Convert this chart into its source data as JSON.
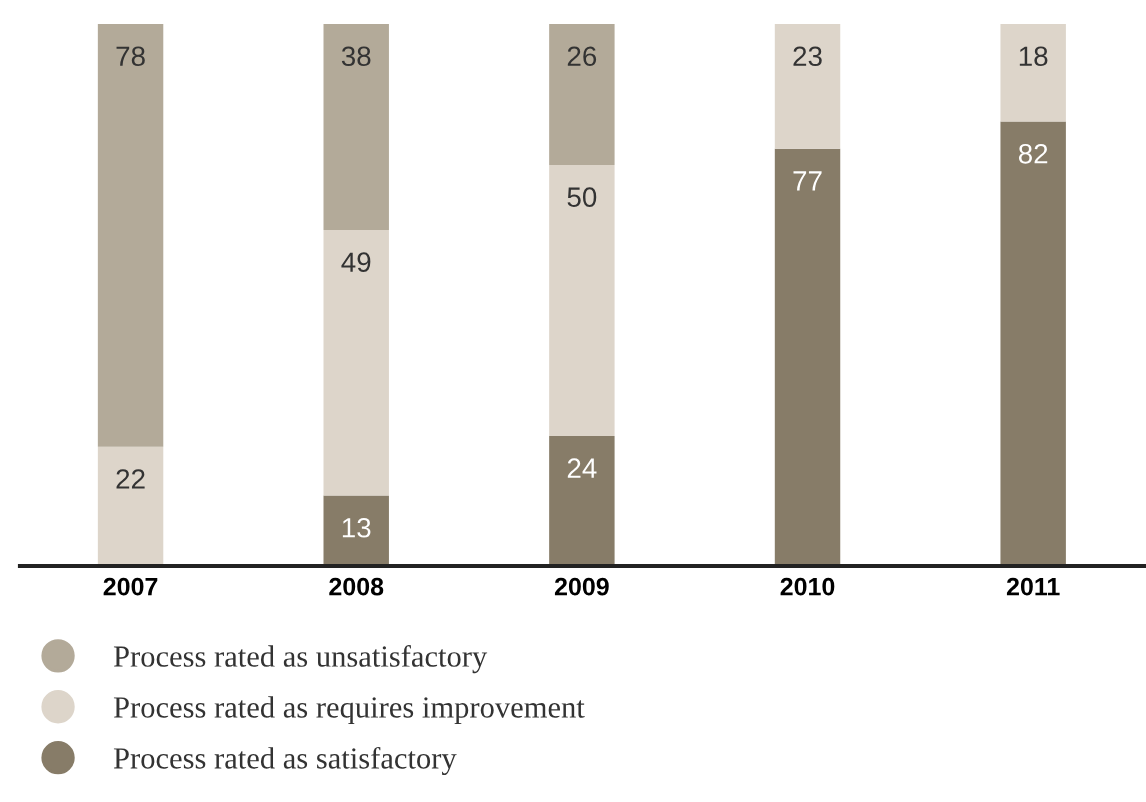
{
  "chart_data": {
    "type": "bar",
    "stacked": true,
    "data_labels": true,
    "legend": "bottom",
    "grid": false,
    "categories": [
      "2007",
      "2008",
      "2009",
      "2010",
      "2011"
    ],
    "series": [
      {
        "name": "Process rated as satisfactory",
        "color": "#877c68",
        "values": [
          null,
          13,
          24,
          77,
          82
        ]
      },
      {
        "name": "Process rated as requires improvement",
        "color": "#ddd5ca",
        "values": [
          22,
          49,
          50,
          23,
          18
        ]
      },
      {
        "name": "Process rated as unsatisfactory",
        "color": "#b3aa99",
        "values": [
          78,
          38,
          26,
          null,
          null
        ]
      }
    ]
  }
}
